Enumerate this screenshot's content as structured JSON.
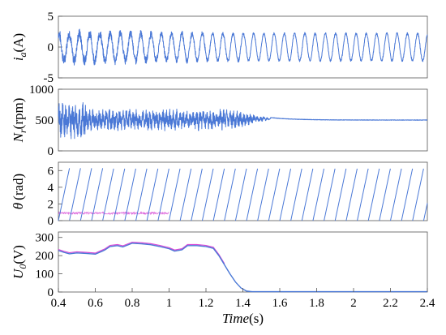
{
  "chart_data": {
    "type": "line",
    "x_label_parts": [
      "Time",
      "(s)"
    ],
    "x_range": [
      0.4,
      2.4
    ],
    "x_ticks": [
      "0.4",
      "0.6",
      "0.8",
      "1",
      "1.2",
      "1.4",
      "1.6",
      "1.8",
      "2",
      "2.2",
      "2.4"
    ],
    "series_color": "#4a78d6",
    "secondary_color": "#d74ad6",
    "panels": [
      {
        "id": "ia",
        "ylabel_parts": [
          "i",
          "a",
          "(A)"
        ],
        "ylim": [
          -5,
          5
        ],
        "yticks": [
          "-5",
          "0",
          "5"
        ],
        "description_values": {
          "amplitude_A": 2.2,
          "frequency_Hz": 18
        }
      },
      {
        "id": "nr",
        "ylabel_parts": [
          "N",
          "r",
          "(rpm)"
        ],
        "ylim": [
          0,
          1000
        ],
        "yticks": [
          "0",
          "500",
          "1000"
        ],
        "description_values": {
          "steady_state_rpm": 500,
          "oscillation_end_s": 1.55
        }
      },
      {
        "id": "theta",
        "ylabel_parts": [
          "θ",
          "",
          "(rad)"
        ],
        "ylim": [
          0,
          7
        ],
        "yticks": [
          "0",
          "2",
          "4",
          "6"
        ],
        "description_values": {
          "peak_rad": 6.28,
          "ramp_period_s": 0.06
        }
      },
      {
        "id": "u0",
        "ylabel_parts": [
          "U",
          "0",
          "(V)"
        ],
        "ylim": [
          0,
          330
        ],
        "yticks": [
          "0",
          "100",
          "200",
          "300"
        ],
        "points": [
          [
            0.4,
            228
          ],
          [
            0.43,
            218
          ],
          [
            0.46,
            210
          ],
          [
            0.5,
            215
          ],
          [
            0.55,
            212
          ],
          [
            0.6,
            208
          ],
          [
            0.65,
            230
          ],
          [
            0.68,
            250
          ],
          [
            0.72,
            255
          ],
          [
            0.75,
            248
          ],
          [
            0.8,
            268
          ],
          [
            0.85,
            265
          ],
          [
            0.9,
            260
          ],
          [
            0.95,
            250
          ],
          [
            1.0,
            238
          ],
          [
            1.03,
            225
          ],
          [
            1.07,
            232
          ],
          [
            1.1,
            255
          ],
          [
            1.15,
            255
          ],
          [
            1.2,
            250
          ],
          [
            1.24,
            240
          ],
          [
            1.27,
            200
          ],
          [
            1.3,
            150
          ],
          [
            1.33,
            100
          ],
          [
            1.36,
            55
          ],
          [
            1.39,
            22
          ],
          [
            1.42,
            5
          ],
          [
            1.45,
            2
          ],
          [
            2.4,
            2
          ]
        ]
      }
    ]
  }
}
